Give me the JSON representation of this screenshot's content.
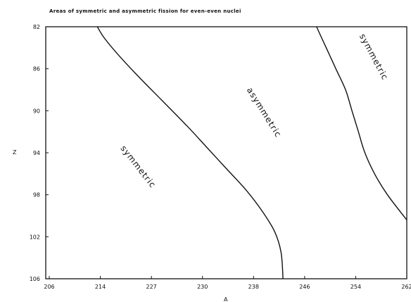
{
  "chart_data": {
    "type": "line",
    "title": "Areas of symmetric and asymmetric fission for even-even nuclei",
    "xlabel": "A",
    "ylabel": "Z",
    "x_tick_labels": [
      "206",
      "214",
      "227",
      "230",
      "238",
      "246",
      "254",
      "262"
    ],
    "y_tick_labels": [
      "82",
      "86",
      "90",
      "94",
      "98",
      "102",
      "106"
    ],
    "xlim": [
      206,
      262
    ],
    "ylim": [
      82,
      106
    ],
    "y_inverted": true,
    "grid": false,
    "series": [
      {
        "x": [
          214,
          215,
          217,
          220,
          224,
          228,
          231,
          234,
          237,
          239.5,
          241.5,
          242.5,
          242.8
        ],
        "y": [
          82,
          83,
          84.5,
          86.5,
          89,
          91.5,
          93.5,
          95.5,
          97.5,
          99.5,
          101.5,
          103.5,
          106
        ]
      },
      {
        "x": [
          248,
          249.5,
          251,
          252.5,
          253.5,
          254.5,
          255.5,
          257,
          259,
          262
        ],
        "y": [
          82,
          84,
          86,
          88,
          90,
          92,
          94,
          96,
          98,
          100.4
        ]
      }
    ],
    "annotations": [
      {
        "text": "symmetric",
        "x": 220,
        "y": 95.5,
        "rotation": 52
      },
      {
        "text": "asymmetric",
        "x": 239.5,
        "y": 90.3,
        "rotation": 58
      },
      {
        "text": "symmetric",
        "x": 256.5,
        "y": 85,
        "rotation": 62
      }
    ]
  }
}
